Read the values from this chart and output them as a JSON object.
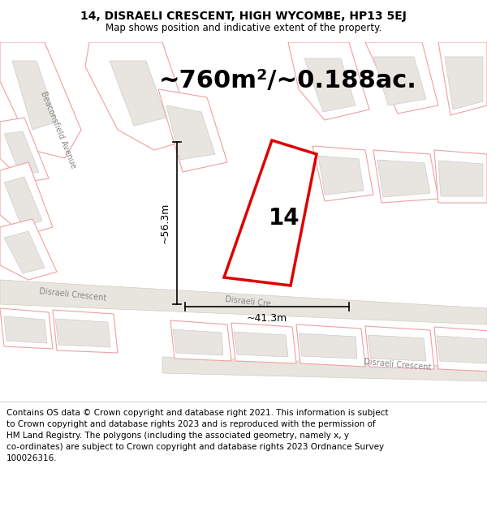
{
  "title": "14, DISRAELI CRESCENT, HIGH WYCOMBE, HP13 5EJ",
  "subtitle": "Map shows position and indicative extent of the property.",
  "area_text": "~760m²/~0.188ac.",
  "number_label": "14",
  "dim_height": "~56.3m",
  "dim_width": "~41.3m",
  "street_label_disraeli1": "Disraeli Crescent",
  "street_label_disraeli2": "Disraeli Crescent",
  "street_label_beac": "Beaconsfield Avenue",
  "street_label_disraeli3": "Disraeli Cre",
  "copyright_text": "Contains OS data © Crown copyright and database right 2021. This information is subject\nto Crown copyright and database rights 2023 and is reproduced with the permission of\nHM Land Registry. The polygons (including the associated geometry, namely x, y\nco-ordinates) are subject to Crown copyright and database rights 2023 Ordnance Survey\n100026316.",
  "map_bg": "#f7f5f2",
  "header_bg": "#ffffff",
  "footer_bg": "#ffffff",
  "red_poly_color": "#dd0000",
  "red_poly_fill": "#ffffff",
  "light_poly_edge": "#f0a0a0",
  "light_poly_fill": "#ffffff",
  "building_fill": "#e8e5e0",
  "building_edge": "#cccccc",
  "road_fill": "#e8e5df",
  "road_edge": "#d0ccc5",
  "title_fontsize": 10,
  "subtitle_fontsize": 8.5,
  "area_fontsize": 22,
  "footer_fontsize": 7.5,
  "dim_fontsize": 9,
  "street_fontsize": 7
}
